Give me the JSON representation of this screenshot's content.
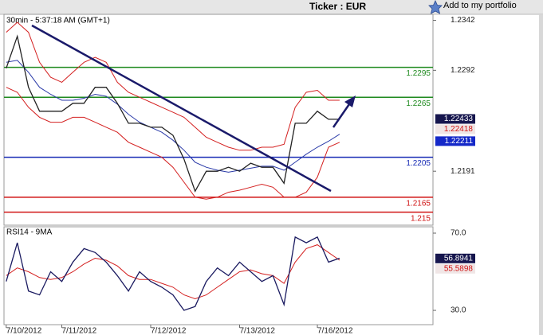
{
  "header": {
    "title": "Ticker : EUR",
    "portfolio_link": "Add to my portfolio"
  },
  "chart_data": [
    {
      "type": "line",
      "subtitle": "30min - 5:37:18 AM (GMT+1)",
      "x": [
        0,
        1,
        2,
        3,
        4,
        5,
        6,
        7,
        8,
        9,
        10,
        11,
        12,
        13,
        14,
        15,
        16,
        17,
        18,
        19,
        20,
        21,
        22,
        23,
        24,
        25,
        26,
        27,
        28,
        29,
        30
      ],
      "xlim": [
        -0.2,
        38.4
      ],
      "ylim": [
        1.2137,
        1.2348
      ],
      "yticks": [
        1.2342,
        1.2292,
        1.2191
      ],
      "series": [
        {
          "color": "#d42020",
          "values": [
            1.233,
            1.234,
            1.233,
            1.23,
            1.2285,
            1.228,
            1.229,
            1.23,
            1.2305,
            1.23,
            1.228,
            1.227,
            1.2265,
            1.226,
            1.2255,
            1.225,
            1.2245,
            1.2235,
            1.2225,
            1.222,
            1.2215,
            1.2212,
            1.2212,
            1.2215,
            1.2215,
            1.2218,
            1.2255,
            1.227,
            1.2272,
            1.2262,
            1.2262
          ]
        },
        {
          "color": "#d42020",
          "values": [
            1.2275,
            1.227,
            1.2255,
            1.2245,
            1.224,
            1.224,
            1.2245,
            1.2245,
            1.224,
            1.2235,
            1.223,
            1.222,
            1.2215,
            1.221,
            1.2205,
            1.2195,
            1.218,
            1.2165,
            1.2163,
            1.2165,
            1.217,
            1.2172,
            1.2175,
            1.2178,
            1.2175,
            1.2165,
            1.2165,
            1.217,
            1.2185,
            1.2215,
            1.222
          ]
        },
        {
          "color": "#2a3aa8",
          "values": [
            1.23,
            1.2302,
            1.229,
            1.2275,
            1.2268,
            1.2262,
            1.2262,
            1.2264,
            1.2268,
            1.2266,
            1.2258,
            1.2248,
            1.224,
            1.2235,
            1.223,
            1.2222,
            1.2212,
            1.22,
            1.2195,
            1.2192,
            1.219,
            1.2192,
            1.2194,
            1.2196,
            1.2196,
            1.2192,
            1.22,
            1.2208,
            1.2215,
            1.2221,
            1.2228
          ]
        },
        {
          "color": "#222222",
          "values": [
            1.2294,
            1.2326,
            1.2275,
            1.2251,
            1.2251,
            1.2251,
            1.2259,
            1.2259,
            1.2275,
            1.2275,
            1.2259,
            1.2239,
            1.2239,
            1.2235,
            1.2235,
            1.2227,
            1.2203,
            1.2171,
            1.2191,
            1.2191,
            1.2195,
            1.2191,
            1.2199,
            1.2195,
            1.2195,
            1.2179,
            1.2239,
            1.2239,
            1.2251,
            1.2243,
            1.2243
          ]
        }
      ],
      "levels": [
        {
          "value": 1.2295,
          "color": "#1e8a1e"
        },
        {
          "value": 1.2265,
          "color": "#1e8a1e"
        },
        {
          "value": 1.2205,
          "color": "#1428b4"
        },
        {
          "value": 1.2165,
          "color": "#d01414"
        },
        {
          "value": 1.215,
          "color": "#d01414"
        }
      ],
      "markers": [
        {
          "value": 1.22433,
          "color": "#16164e"
        },
        {
          "value": 1.22418,
          "color": "#d01414"
        },
        {
          "value": 1.22211,
          "color": "#1428c8"
        }
      ]
    },
    {
      "type": "line",
      "title": "RSI14 - 9MA",
      "x": [
        0,
        1,
        2,
        3,
        4,
        5,
        6,
        7,
        8,
        9,
        10,
        11,
        12,
        13,
        14,
        15,
        16,
        17,
        18,
        19,
        20,
        21,
        22,
        23,
        24,
        25,
        26,
        27,
        28,
        29,
        30
      ],
      "xlim": [
        -0.2,
        38.4
      ],
      "ylim": [
        22.6,
        73.3
      ],
      "yticks": [
        {
          "value": 70,
          "label": "70.0"
        },
        {
          "value": 30,
          "label": "30.0"
        }
      ],
      "xticks": [
        {
          "value": 0,
          "label": "7/10/2012"
        },
        {
          "value": 5,
          "label": "7/11/2012"
        },
        {
          "value": 13,
          "label": "7/12/2012"
        },
        {
          "value": 21,
          "label": "7/13/2012"
        },
        {
          "value": 28,
          "label": "7/16/2012"
        }
      ],
      "series": [
        {
          "color": "#d42020",
          "values": [
            48,
            52,
            50,
            47,
            46,
            47,
            50,
            54,
            57,
            56,
            53,
            48,
            46,
            46,
            44,
            42,
            38,
            36,
            38,
            42,
            46,
            50,
            51,
            49,
            48,
            44,
            55,
            62,
            64,
            60,
            56
          ]
        },
        {
          "color": "#1a1a60",
          "values": [
            45,
            65,
            40,
            38,
            50,
            45,
            55,
            62,
            60,
            55,
            48,
            40,
            50,
            45,
            42,
            38,
            30,
            32,
            45,
            52,
            48,
            55,
            50,
            45,
            48,
            33,
            68,
            65,
            68,
            55,
            57
          ]
        }
      ],
      "markers": [
        {
          "value": 56.8941,
          "color": "#16164e"
        },
        {
          "value": 55.5898,
          "color": "#d01414"
        }
      ]
    }
  ]
}
